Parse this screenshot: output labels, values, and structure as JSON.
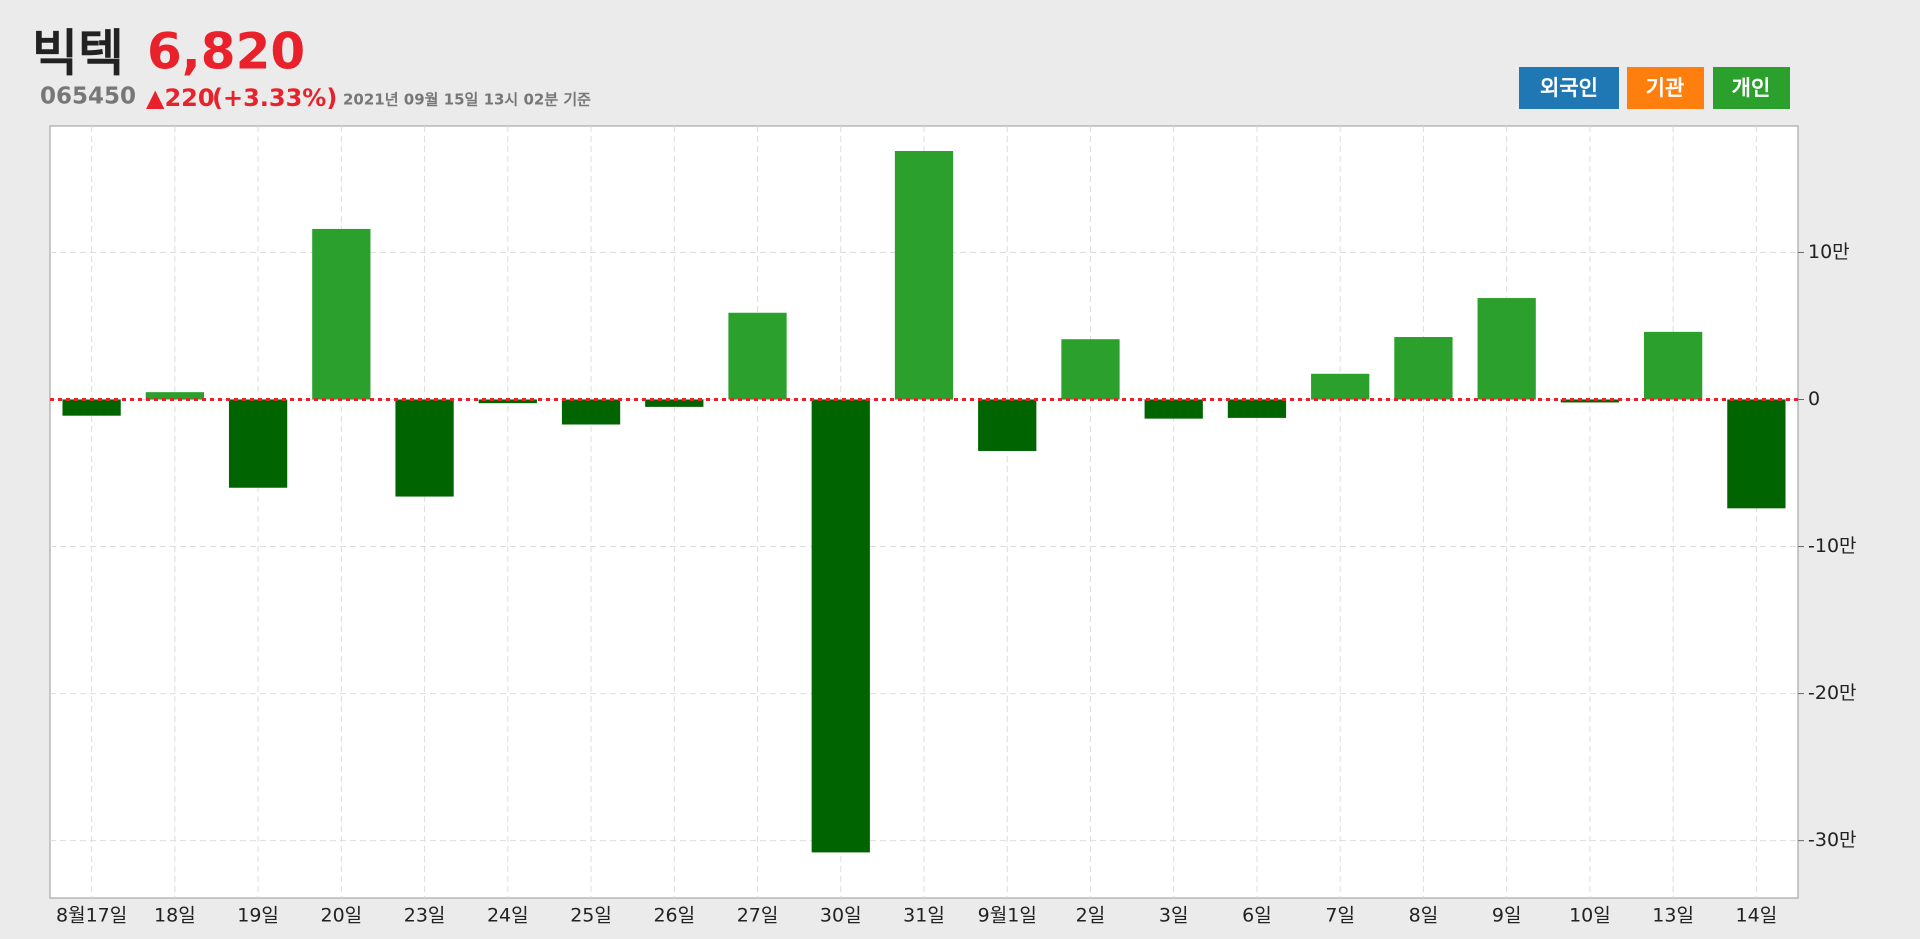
{
  "header": {
    "name": "빅텍",
    "price": "6,820",
    "code": "065450",
    "change": "▲220",
    "change_pct": "(+3.33%)",
    "timestamp": "2021년 09월 15일 13시 02분 기준"
  },
  "buttons": [
    "외국인",
    "기관",
    "개인"
  ],
  "chart_data": {
    "type": "bar",
    "categories": [
      "8월17일",
      "18일",
      "19일",
      "20일",
      "23일",
      "24일",
      "25일",
      "26일",
      "27일",
      "30일",
      "31일",
      "9월1일",
      "2일",
      "3일",
      "6일",
      "7일",
      "8일",
      "9일",
      "10일",
      "13일",
      "14일"
    ],
    "values": [
      -11000,
      5000,
      -60000,
      116000,
      -66000,
      -2500,
      -17000,
      -5000,
      59000,
      -308000,
      169000,
      -35000,
      41000,
      -13000,
      -12500,
      17500,
      42500,
      69000,
      -2000,
      46000,
      -74000
    ],
    "positive_color": "#2ca02c",
    "negative_color": "#006400",
    "zero_line_color": "#e8212b",
    "ylim": [
      -339000,
      186000
    ],
    "yticks": [
      {
        "value": -300000,
        "label": "-30만"
      },
      {
        "value": -200000,
        "label": "-20만"
      },
      {
        "value": -100000,
        "label": "-10만"
      },
      0,
      {
        "value": 100000,
        "label": "10만"
      }
    ],
    "grid": true
  }
}
